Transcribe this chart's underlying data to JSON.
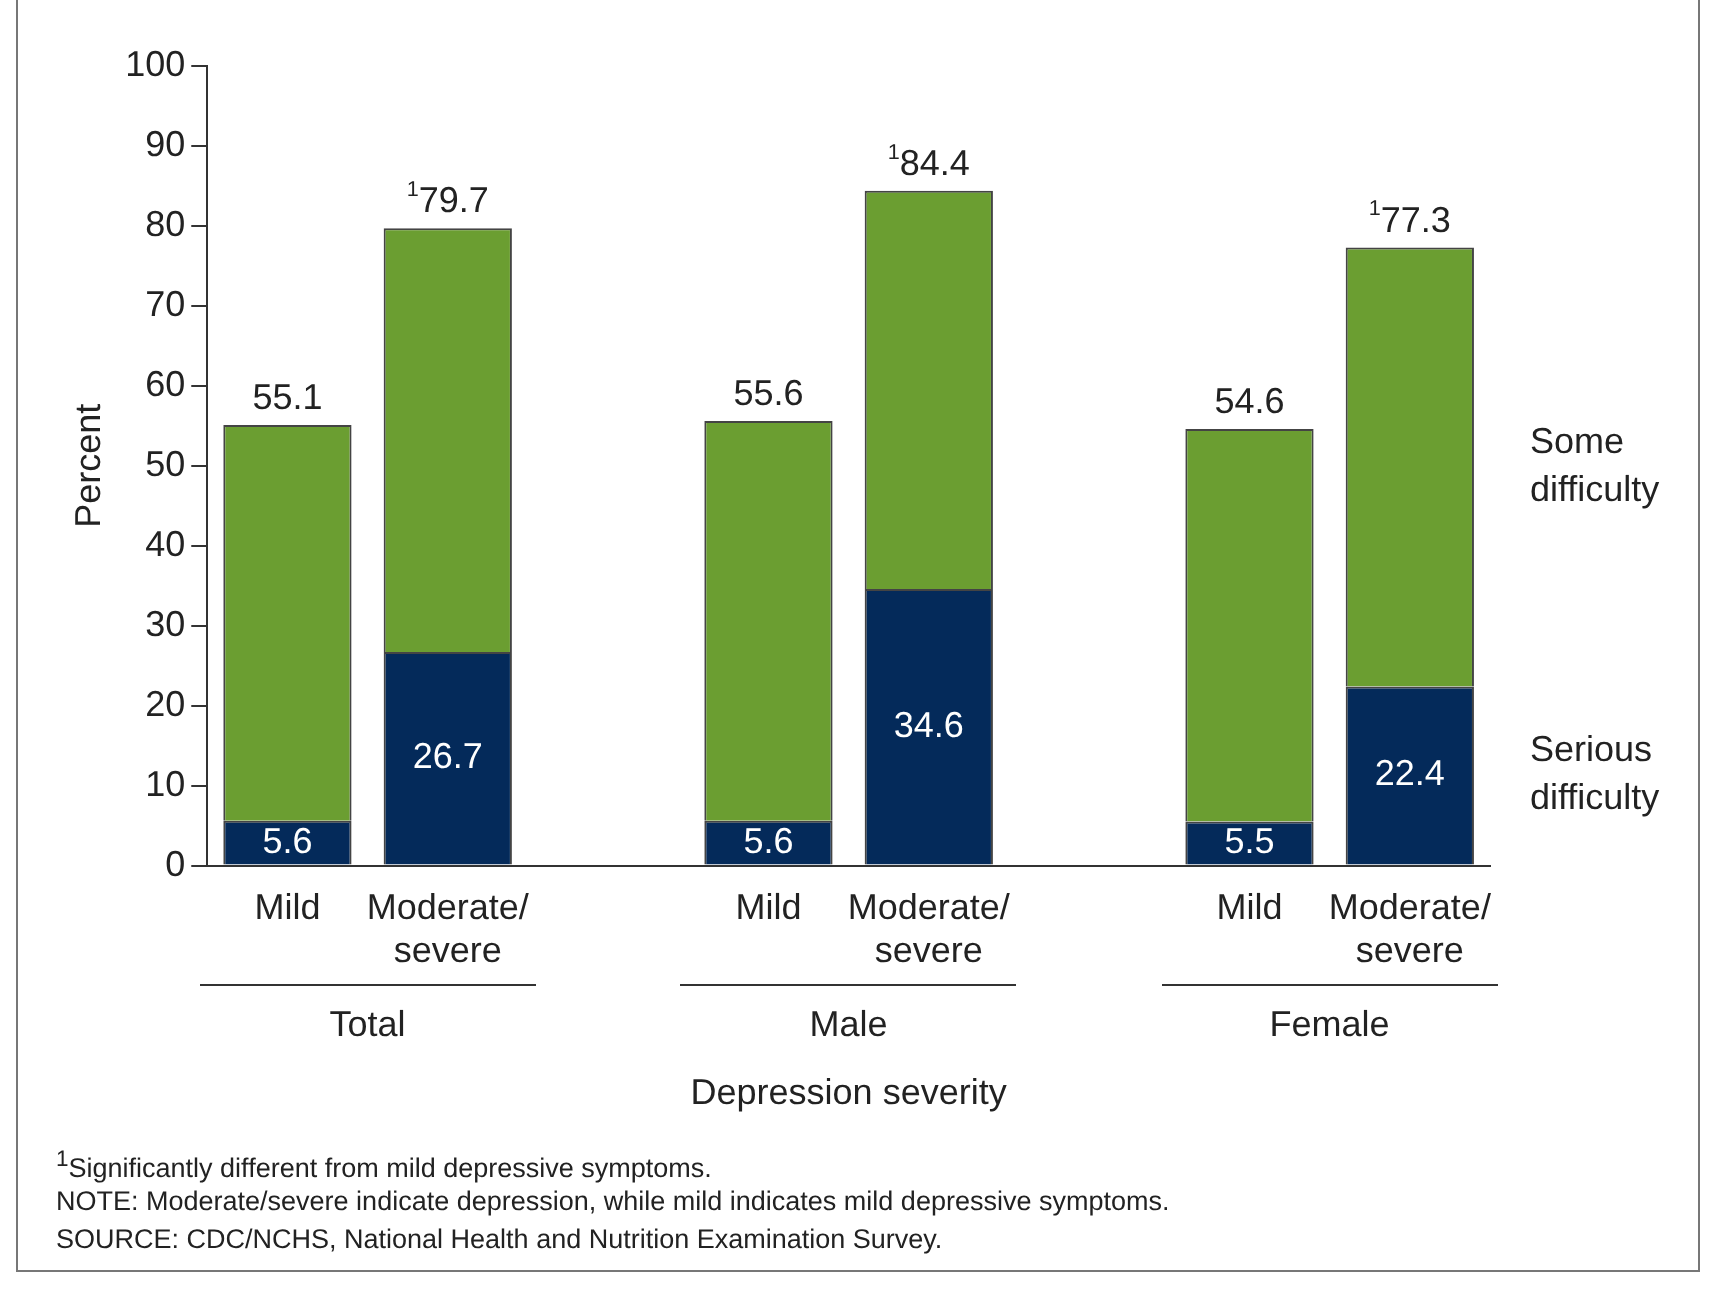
{
  "chart_data": {
    "type": "bar",
    "stacked": true,
    "ylabel": "Percent",
    "xlabel": "Depression severity",
    "categories": [
      "Mild",
      "Moderate/severe",
      null,
      "Mild",
      "Moderate/severe",
      null,
      "Mild",
      "Moderate/severe"
    ],
    "series": [
      {
        "name": "Serious difficulty",
        "color": "#042a5a",
        "values": [
          5.6,
          26.7,
          null,
          5.6,
          34.6,
          null,
          5.5,
          22.4
        ],
        "value_labels": [
          "5.6",
          "26.7",
          null,
          "5.6",
          "34.6",
          null,
          "5.5",
          "22.4"
        ]
      },
      {
        "name": "Some difficulty",
        "color": "#6b9e31",
        "values": [
          49.5,
          53.0,
          null,
          50.0,
          49.8,
          null,
          49.1,
          54.9
        ]
      }
    ],
    "totals": [
      "55.1",
      "$^{1}$79.7",
      null,
      "55.6",
      "$^{1}$84.4",
      null,
      "54.6",
      "$^{1}$77.3"
    ],
    "ylim": [
      0,
      100
    ],
    "yticks": [
      0,
      10,
      20,
      30,
      40,
      50,
      60,
      70,
      80,
      90,
      100
    ],
    "annotations": [
      "Total",
      "Male",
      "Female",
      "$^{1}$Significantly different from mild depressive symptoms.",
      "NOTE:  Moderate/severe indicate depression, while mild indicates mild depressive symptoms.",
      "SOURCE:  CDC/NCHS, National Health and Nutrition Examination Survey."
    ]
  }
}
